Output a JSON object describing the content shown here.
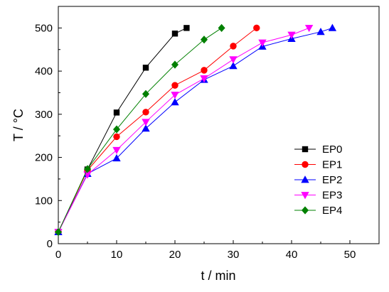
{
  "chart_data": {
    "type": "line",
    "xlabel": "t / min",
    "ylabel": "T / °C",
    "xlim": [
      0,
      55
    ],
    "ylim": [
      0,
      550
    ],
    "xticks": [
      0,
      10,
      20,
      30,
      40,
      50
    ],
    "yticks": [
      0,
      100,
      200,
      300,
      400,
      500
    ],
    "grid": false,
    "legend_position": "right-center",
    "series": [
      {
        "name": "EP0",
        "color": "#000000",
        "marker": "square",
        "x": [
          0,
          5,
          10,
          15,
          20,
          22
        ],
        "y": [
          27,
          172,
          304,
          408,
          487,
          500
        ]
      },
      {
        "name": "EP1",
        "color": "#ff0000",
        "marker": "circle",
        "x": [
          0,
          5,
          10,
          15,
          20,
          25,
          30,
          34
        ],
        "y": [
          27,
          170,
          248,
          305,
          367,
          402,
          458,
          500
        ]
      },
      {
        "name": "EP2",
        "color": "#0000ff",
        "marker": "triangle-up",
        "x": [
          0,
          5,
          10,
          15,
          20,
          25,
          30,
          35,
          40,
          45,
          47
        ],
        "y": [
          27,
          162,
          198,
          267,
          328,
          380,
          412,
          457,
          475,
          491,
          500
        ]
      },
      {
        "name": "EP3",
        "color": "#ff00ff",
        "marker": "triangle-down",
        "x": [
          0,
          5,
          10,
          15,
          20,
          25,
          30,
          35,
          40,
          43
        ],
        "y": [
          27,
          160,
          217,
          282,
          345,
          383,
          427,
          466,
          484,
          500
        ]
      },
      {
        "name": "EP4",
        "color": "#008000",
        "marker": "diamond",
        "x": [
          0,
          5,
          10,
          15,
          20,
          25,
          28
        ],
        "y": [
          27,
          173,
          265,
          347,
          415,
          473,
          500
        ]
      }
    ]
  }
}
